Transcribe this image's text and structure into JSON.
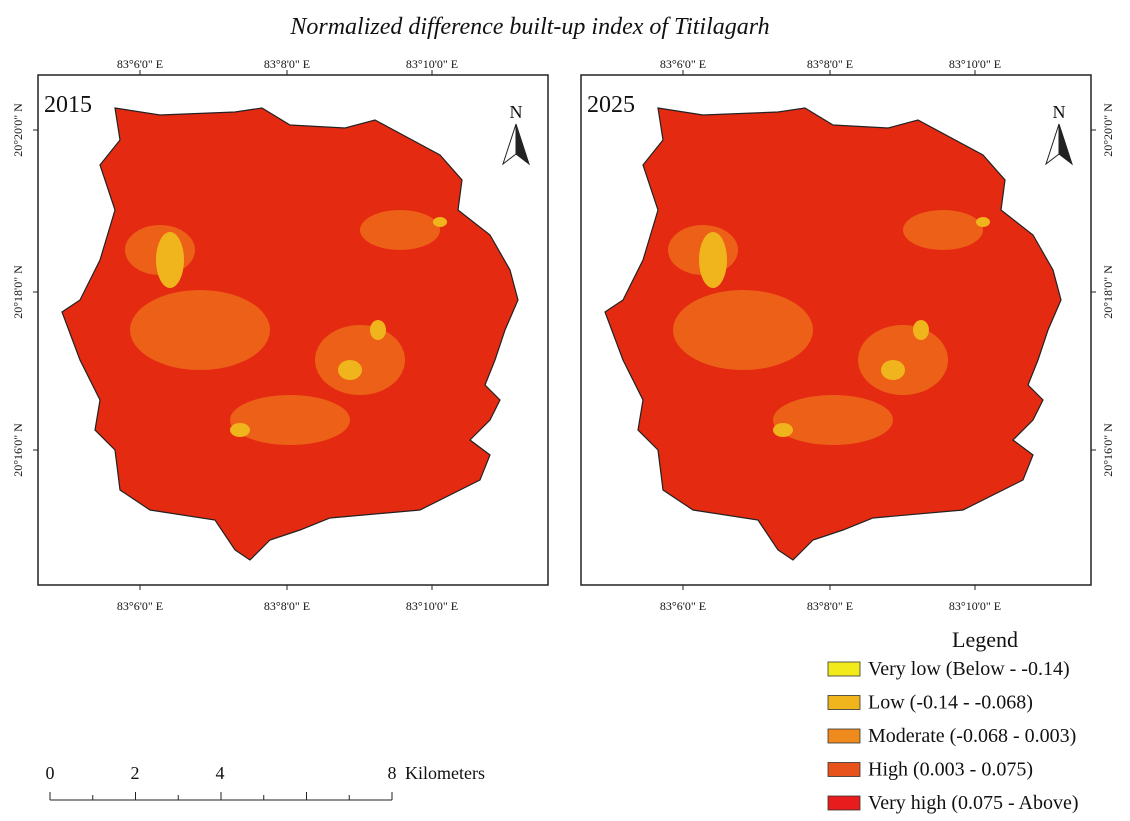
{
  "title": "Normalized difference built-up index of Titilagarh",
  "maps": [
    {
      "year": "2015",
      "north": "N",
      "top_labels": [
        "83°6'0\" E",
        "83°8'0\" E",
        "83°10'0\" E"
      ],
      "bottom_labels": [
        "83°6'0\" E",
        "83°8'0\" E",
        "83°10'0\" E"
      ],
      "side_labels": [
        "20°20'0\" N",
        "20°18'0\" N",
        "20°16'0\" N"
      ]
    },
    {
      "year": "2025",
      "north": "N",
      "top_labels": [
        "83°6'0\" E",
        "83°8'0\" E",
        "83°10'0\" E"
      ],
      "bottom_labels": [
        "83°6'0\" E",
        "83°8'0\" E",
        "83°10'0\" E"
      ],
      "side_labels": [
        "20°20'0\" N",
        "20°18'0\" N",
        "20°16'0\" N"
      ]
    }
  ],
  "legend": {
    "title": "Legend",
    "items": [
      {
        "label": "Very low (Below - -0.14)",
        "color": "#f2ea1a"
      },
      {
        "label": "Low (-0.14 - -0.068)",
        "color": "#f0b51c"
      },
      {
        "label": "Moderate (-0.068 - 0.003)",
        "color": "#ee8a1e"
      },
      {
        "label": "High (0.003 - 0.075)",
        "color": "#e8531c"
      },
      {
        "label": "Very high  (0.075 - Above)",
        "color": "#e81c1c"
      }
    ]
  },
  "scale_bar": {
    "ticks": [
      "0",
      "2",
      "4",
      "8"
    ],
    "unit": "Kilometers"
  }
}
